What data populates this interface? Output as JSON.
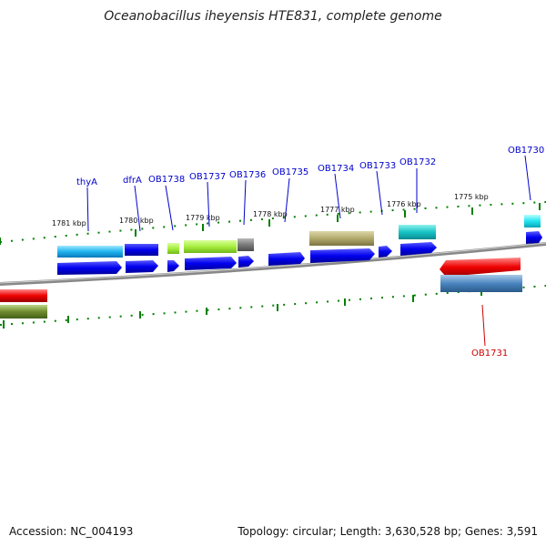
{
  "title": "Oceanobacillus iheyensis HTE831, complete genome",
  "footer": {
    "accession": "Accession: NC_004193",
    "topology": "Topology: circular; Length: 3,630,528 bp; Genes: 3,591"
  },
  "colors": {
    "forward_label": "#0000cc",
    "reverse_label": "#cc0000",
    "backbone": "#808080",
    "tick": "#008000"
  },
  "kbp_ticks": [
    "1781 kbp",
    "1780 kbp",
    "1779 kbp",
    "1778 kbp",
    "1777 kbp",
    "1776 kbp",
    "1775 kbp"
  ],
  "gene_labels": [
    {
      "text": "thyA",
      "strand": "forward"
    },
    {
      "text": "dfrA",
      "strand": "forward"
    },
    {
      "text": "OB1738",
      "strand": "forward"
    },
    {
      "text": "OB1737",
      "strand": "forward"
    },
    {
      "text": "OB1736",
      "strand": "forward"
    },
    {
      "text": "OB1735",
      "strand": "forward"
    },
    {
      "text": "OB1734",
      "strand": "forward"
    },
    {
      "text": "OB1733",
      "strand": "forward"
    },
    {
      "text": "OB1732",
      "strand": "forward"
    },
    {
      "text": "OB1730",
      "strand": "forward"
    },
    {
      "text": "OB1731",
      "strand": "reverse"
    }
  ]
}
